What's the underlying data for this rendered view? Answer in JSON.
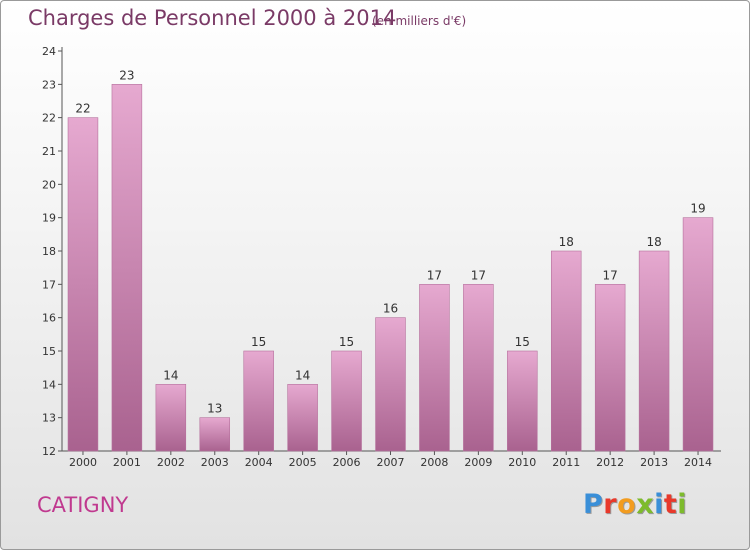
{
  "header": {
    "title": "Charges de Personnel 2000 à 2014",
    "subtitle": "(en milliers d'€)"
  },
  "footer": {
    "commune": "CATIGNY",
    "logo_text": "Proxiti",
    "logo_colors": [
      "#3a8fd8",
      "#e8392b",
      "#f29c1f",
      "#7dbb2c",
      "#3a8fd8",
      "#e8392b",
      "#7dbb2c"
    ]
  },
  "colors": {
    "bar_top": "#e6a9d0",
    "bar_bottom": "#a9628f",
    "bar_edge": "#b5709c",
    "title": "#7a3a66",
    "commune": "#c0398f"
  },
  "chart_data": {
    "type": "bar",
    "title": "Charges de Personnel 2000 à 2014",
    "subtitle": "(en milliers d'€)",
    "categories": [
      "2000",
      "2001",
      "2002",
      "2003",
      "2004",
      "2005",
      "2006",
      "2007",
      "2008",
      "2009",
      "2010",
      "2011",
      "2012",
      "2013",
      "2014"
    ],
    "values": [
      22,
      23,
      14,
      13,
      15,
      14,
      15,
      16,
      17,
      17,
      15,
      18,
      17,
      18,
      19
    ],
    "ylim": [
      12,
      24
    ],
    "yticks": [
      12,
      13,
      14,
      15,
      16,
      17,
      18,
      19,
      20,
      21,
      22,
      23,
      24
    ],
    "xlabel": "",
    "ylabel": "",
    "grid": false,
    "data_labels": true
  }
}
